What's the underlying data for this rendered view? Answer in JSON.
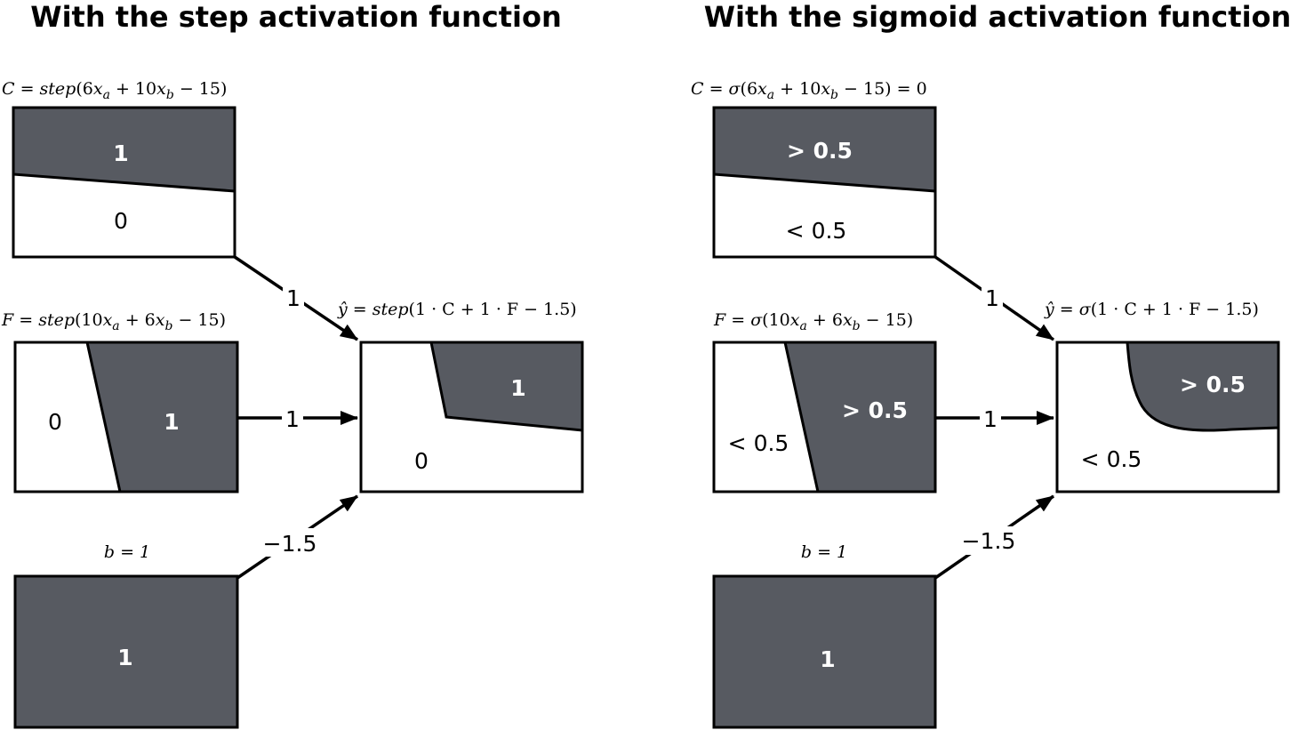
{
  "panels": [
    {
      "title": "With the step activation function",
      "c_formula": {
        "lhs": "C",
        "eq": " = ",
        "fn": "step",
        "open": "(6",
        "x1": "x",
        "s1": "a",
        "mid": " + 10",
        "x2": "x",
        "s2": "b",
        "tail": " − 15)",
        "suffix": ""
      },
      "f_formula": {
        "lhs": "F",
        "eq": " = ",
        "fn": "step",
        "open": "(10",
        "x1": "x",
        "s1": "a",
        "mid": " + 6",
        "x2": "x",
        "s2": "b",
        "tail": " − 15)"
      },
      "b_formula": "b = 1",
      "y_formula": {
        "lhs": "ŷ",
        "eq": " = ",
        "fn": "step",
        "body": "(1 · C + 1 · F − 1.5)"
      },
      "c_box": {
        "top_label": "1",
        "bottom_label": "0"
      },
      "f_box": {
        "left_label": "0",
        "right_label": "1"
      },
      "b_box": {
        "label": "1"
      },
      "y_box": {
        "top_label": "1",
        "bottom_label": "0"
      },
      "weights": {
        "c": "1",
        "f": "1",
        "b": "−1.5"
      }
    },
    {
      "title": "With the sigmoid activation function",
      "c_formula": {
        "lhs": "C",
        "eq": " = ",
        "fn": "σ",
        "open": "(6",
        "x1": "x",
        "s1": "a",
        "mid": " + 10",
        "x2": "x",
        "s2": "b",
        "tail": " − 15)",
        "suffix": " = 0"
      },
      "f_formula": {
        "lhs": "F",
        "eq": " = ",
        "fn": "σ",
        "open": "(10",
        "x1": "x",
        "s1": "a",
        "mid": " + 6",
        "x2": "x",
        "s2": "b",
        "tail": " − 15)"
      },
      "b_formula": "b = 1",
      "y_formula": {
        "lhs": "ŷ",
        "eq": " = ",
        "fn": "σ",
        "body": "(1 · C + 1 · F − 1.5)"
      },
      "c_box": {
        "top_label": "> 0.5",
        "bottom_label": "< 0.5"
      },
      "f_box": {
        "left_label": "< 0.5",
        "right_label": "> 0.5"
      },
      "b_box": {
        "label": "1"
      },
      "y_box": {
        "top_label": "> 0.5",
        "bottom_label": "< 0.5"
      },
      "weights": {
        "c": "1",
        "f": "1",
        "b": "−1.5"
      }
    }
  ],
  "colors": {
    "region_fill": "#575a61",
    "stroke": "#000000",
    "background": "#ffffff"
  }
}
